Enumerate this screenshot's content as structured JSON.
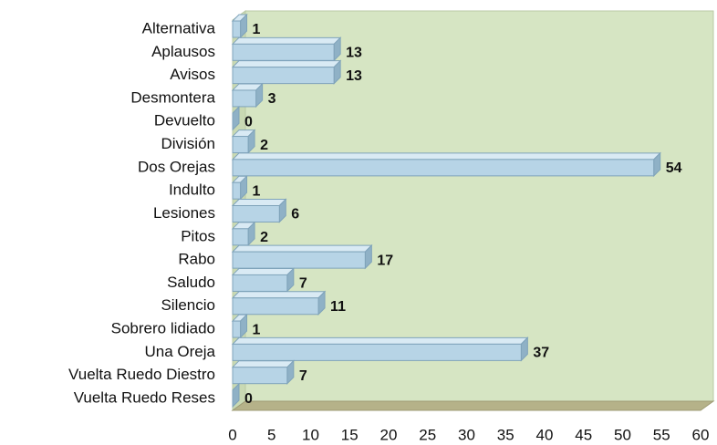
{
  "chart_data": {
    "type": "bar",
    "orientation": "horizontal",
    "categories": [
      "Alternativa",
      "Aplausos",
      "Avisos",
      "Desmontera",
      "Devuelto",
      "División",
      "Dos Orejas",
      "Indulto",
      "Lesiones",
      "Pitos",
      "Rabo",
      "Saludo",
      "Silencio",
      "Sobrero lidiado",
      "Una Oreja",
      "Vuelta Ruedo Diestro",
      "Vuelta Ruedo Reses"
    ],
    "values": [
      1,
      13,
      13,
      3,
      0,
      2,
      54,
      1,
      6,
      2,
      17,
      7,
      11,
      1,
      37,
      7,
      0
    ],
    "color": "#b7d4e6",
    "xlim": [
      0,
      60
    ],
    "xticks": [
      0,
      5,
      10,
      15,
      20,
      25,
      30,
      35,
      40,
      45,
      50,
      55,
      60
    ]
  }
}
